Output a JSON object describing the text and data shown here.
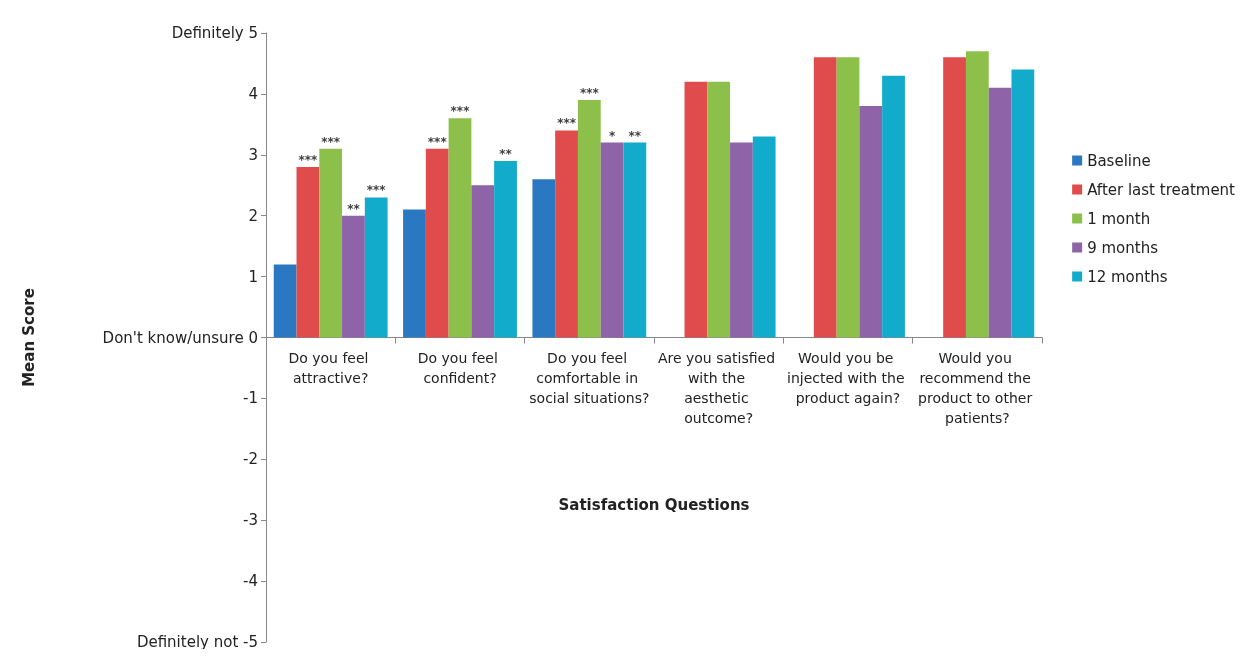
{
  "chart_data": {
    "type": "bar",
    "xlabel": "Satisfaction Questions",
    "ylabel": "Mean Score",
    "categories": [
      "Do you feel attractive?",
      "Do you feel confident?",
      "Do you feel comfortable in social situations?",
      "Are you satisfied with the aesthetic outcome?",
      "Would you be injected with the product again?",
      "Would you recommend the product to other patients?"
    ],
    "series": [
      {
        "name": "Baseline",
        "color": "#2a78c2",
        "values": [
          1.2,
          2.1,
          2.6,
          null,
          null,
          null
        ]
      },
      {
        "name": "After last treatment",
        "color": "#e04b4b",
        "values": [
          2.8,
          3.1,
          3.4,
          4.2,
          4.6,
          4.6
        ],
        "value_labels": [
          "***",
          "***",
          "***",
          null,
          null,
          null
        ]
      },
      {
        "name": "1 month",
        "color": "#8cc04a",
        "values": [
          3.1,
          3.6,
          3.9,
          4.2,
          4.6,
          4.7
        ],
        "value_labels": [
          "***",
          "***",
          "***",
          null,
          null,
          null
        ]
      },
      {
        "name": "9 months",
        "color": "#8e63a8",
        "values": [
          2.0,
          2.5,
          3.2,
          3.2,
          3.8,
          4.1
        ],
        "value_labels": [
          "**",
          null,
          "*",
          null,
          null,
          null
        ]
      },
      {
        "name": "12 months",
        "color": "#12abcb",
        "values": [
          2.3,
          2.9,
          3.2,
          3.3,
          4.3,
          4.4
        ],
        "value_labels": [
          "***",
          "**",
          "**",
          null,
          null,
          null
        ]
      }
    ],
    "ylim": [
      -5,
      5
    ],
    "yticks": [
      {
        "value": -5,
        "label": "Definitely not -5"
      },
      -4,
      -3,
      -2,
      -1,
      {
        "value": 0,
        "label": "Don't know/unsure 0"
      },
      1,
      2,
      3,
      4,
      {
        "value": 5,
        "label": "Definitely 5"
      }
    ],
    "legend": "right"
  }
}
